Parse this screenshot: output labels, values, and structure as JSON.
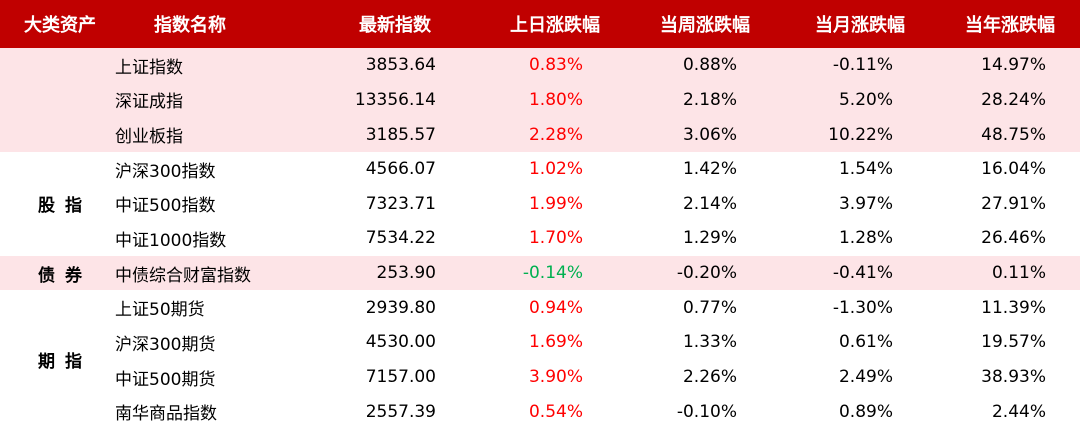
{
  "table": {
    "header": [
      "大类资产",
      "指数名称",
      "最新指数",
      "上日涨跌幅",
      "当周涨跌幅",
      "当月涨跌幅",
      "当年涨跌幅"
    ],
    "header_color": "#c00000",
    "up_color": "#ff0000",
    "down_color": "#00b050",
    "groups": [
      {
        "band": "#fde4e7",
        "rows": [
          [
            "上证指数",
            "3853.64",
            "0.83%",
            "0.88%",
            "-0.11%",
            "14.97%"
          ],
          [
            "深证成指",
            "13356.14",
            "1.80%",
            "2.18%",
            "5.20%",
            "28.24%"
          ],
          [
            "创业板指",
            "3185.57",
            "2.28%",
            "3.06%",
            "10.22%",
            "48.75%"
          ]
        ]
      },
      {
        "label": "股指",
        "band": "#ffffff",
        "rows": [
          [
            "沪深300指数",
            "4566.07",
            "1.02%",
            "1.42%",
            "1.54%",
            "16.04%"
          ],
          [
            "中证500指数",
            "7323.71",
            "1.99%",
            "2.14%",
            "3.97%",
            "27.91%"
          ],
          [
            "中证1000指数",
            "7534.22",
            "1.70%",
            "1.29%",
            "1.28%",
            "26.46%"
          ]
        ]
      },
      {
        "label": "债券",
        "band": "#fde4e7",
        "rows": [
          [
            "中债综合财富指数",
            "253.90",
            "-0.14%",
            "-0.20%",
            "-0.41%",
            "0.11%"
          ]
        ]
      },
      {
        "label": "期指",
        "band": "#ffffff",
        "rows": [
          [
            "上证50期货",
            "2939.80",
            "0.94%",
            "0.77%",
            "-1.30%",
            "11.39%"
          ],
          [
            "沪深300期货",
            "4530.00",
            "1.69%",
            "1.33%",
            "0.61%",
            "19.57%"
          ],
          [
            "中证500期货",
            "7157.00",
            "3.90%",
            "2.26%",
            "2.49%",
            "38.93%"
          ],
          [
            "南华商品指数",
            "2557.39",
            "0.54%",
            "-0.10%",
            "0.89%",
            "2.44%"
          ]
        ]
      }
    ]
  }
}
